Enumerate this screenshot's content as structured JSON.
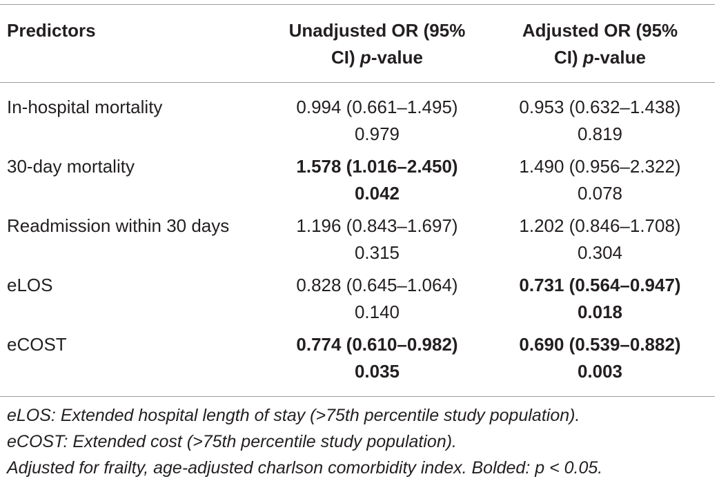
{
  "header": {
    "predictors": "Predictors",
    "unadjusted_line1": "Unadjusted OR (95%",
    "unadjusted_line2_pre": "CI) ",
    "unadjusted_line2_em": "p",
    "unadjusted_line2_post": "-value",
    "adjusted_line1": "Adjusted OR (95%",
    "adjusted_line2_pre": "CI) ",
    "adjusted_line2_em": "p",
    "adjusted_line2_post": "-value"
  },
  "rows": [
    {
      "label": "In-hospital mortality",
      "unadjusted": {
        "or": "0.994 (0.661–1.495)",
        "p": "0.979",
        "bold": false
      },
      "adjusted": {
        "or": "0.953 (0.632–1.438)",
        "p": "0.819",
        "bold": false
      }
    },
    {
      "label": "30-day mortality",
      "unadjusted": {
        "or": "1.578 (1.016–2.450)",
        "p": "0.042",
        "bold": true
      },
      "adjusted": {
        "or": "1.490 (0.956–2.322)",
        "p": "0.078",
        "bold": false
      }
    },
    {
      "label": "Readmission within 30 days",
      "unadjusted": {
        "or": "1.196 (0.843–1.697)",
        "p": "0.315",
        "bold": false
      },
      "adjusted": {
        "or": "1.202 (0.846–1.708)",
        "p": "0.304",
        "bold": false
      }
    },
    {
      "label": "eLOS",
      "unadjusted": {
        "or": "0.828 (0.645–1.064)",
        "p": "0.140",
        "bold": false
      },
      "adjusted": {
        "or": "0.731 (0.564–0.947)",
        "p": "0.018",
        "bold": true
      }
    },
    {
      "label": "eCOST",
      "unadjusted": {
        "or": "0.774 (0.610–0.982)",
        "p": "0.035",
        "bold": true
      },
      "adjusted": {
        "or": "0.690 (0.539–0.882)",
        "p": "0.003",
        "bold": true
      }
    }
  ],
  "footnotes": [
    "eLOS: Extended hospital length of stay (>75th percentile study population).",
    "eCOST: Extended cost (>75th percentile study population).",
    "Adjusted for frailty, age-adjusted charlson comorbidity index. Bolded: p < 0.05."
  ]
}
